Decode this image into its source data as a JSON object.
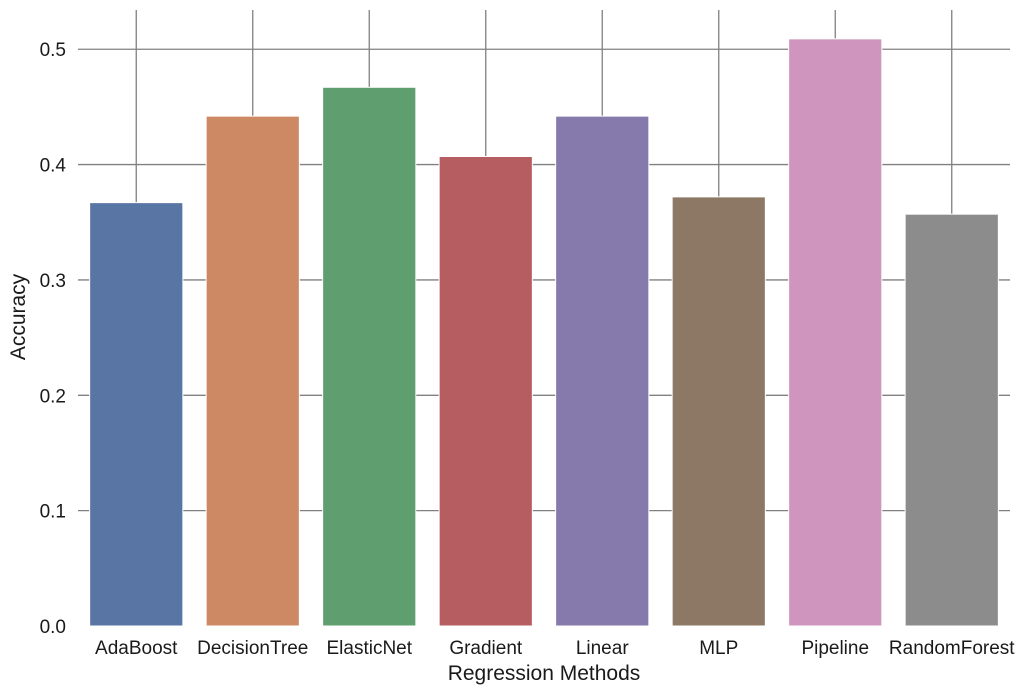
{
  "chart_data": {
    "type": "bar",
    "title": "",
    "xlabel": "Regression Methods",
    "ylabel": "Accuracy",
    "categories": [
      "AdaBoost",
      "DecisionTree",
      "ElasticNet",
      "Gradient",
      "Linear",
      "MLP",
      "Pipeline",
      "RandomForest"
    ],
    "values": [
      0.367,
      0.442,
      0.467,
      0.407,
      0.442,
      0.372,
      0.509,
      0.357
    ],
    "colors": [
      "#5975a4",
      "#cc8963",
      "#5f9e6e",
      "#b55d60",
      "#857aab",
      "#8d7866",
      "#d095bf",
      "#8c8c8c"
    ],
    "ylim": [
      0,
      0.534
    ],
    "yticks": [
      "0.0",
      "0.1",
      "0.2",
      "0.3",
      "0.4",
      "0.5"
    ],
    "grid": true,
    "grid_color": "#808080",
    "legend": "none"
  }
}
